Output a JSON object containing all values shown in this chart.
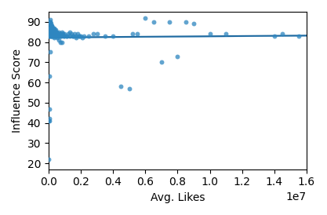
{
  "xlabel": "Avg. Likes",
  "ylabel": "Influence Score",
  "xlim": [
    0,
    16000000.0
  ],
  "ylim": [
    17,
    95
  ],
  "scatter_color": "#2e86c0",
  "line_color": "#1f6aa0",
  "ci_color": "#c5ddf0",
  "scatter_alpha": 0.75,
  "marker_size": 18,
  "seed": 42,
  "x_data": [
    50000,
    30000,
    20000,
    10000,
    40000,
    60000,
    25000,
    15000,
    35000,
    45000,
    55000,
    70000,
    80000,
    90000,
    100000,
    110000,
    120000,
    130000,
    140000,
    150000,
    160000,
    170000,
    180000,
    190000,
    200000,
    210000,
    220000,
    230000,
    240000,
    250000,
    260000,
    270000,
    280000,
    290000,
    300000,
    310000,
    320000,
    330000,
    340000,
    350000,
    360000,
    370000,
    380000,
    390000,
    400000,
    420000,
    440000,
    460000,
    480000,
    500000,
    550000,
    600000,
    650000,
    700000,
    750000,
    800000,
    850000,
    900000,
    950000,
    1000000,
    1100000,
    1200000,
    1300000,
    1400000,
    1500000,
    1600000,
    1700000,
    1800000,
    1900000,
    2000000,
    2200000,
    2500000,
    2800000,
    3000000,
    3500000,
    4000000,
    4500000,
    5000000,
    5200000,
    5500000,
    6000000,
    6500000,
    7000000,
    7500000,
    8000000,
    8500000,
    9000000,
    10000000,
    11000000,
    14000000,
    14500000,
    15500000,
    50000,
    70000,
    90000,
    110000,
    130000,
    150000,
    170000,
    190000,
    210000,
    230000,
    250000,
    280000,
    310000,
    340000,
    370000,
    400000,
    450000,
    500000,
    600000,
    700000,
    800000,
    900000,
    1000000,
    1100000,
    1300000,
    1500000,
    1700000,
    1900000,
    2100000,
    60000,
    80000,
    100000,
    120000,
    140000,
    160000,
    180000,
    200000,
    220000,
    240000,
    270000,
    300000,
    330000,
    360000,
    420000,
    480000,
    550000,
    650000,
    750000,
    850000,
    40000,
    35000,
    25000,
    15000,
    55000,
    75000,
    95000
  ],
  "y_data": [
    84,
    85,
    83,
    86,
    84,
    85,
    84,
    83,
    85,
    84,
    85,
    84,
    83,
    85,
    84,
    85,
    83,
    84,
    85,
    84,
    83,
    85,
    84,
    83,
    85,
    84,
    83,
    85,
    84,
    85,
    84,
    83,
    84,
    85,
    84,
    83,
    85,
    84,
    83,
    84,
    85,
    84,
    83,
    85,
    84,
    83,
    85,
    84,
    83,
    85,
    84,
    83,
    85,
    84,
    83,
    84,
    85,
    84,
    83,
    84,
    83,
    84,
    85,
    84,
    83,
    84,
    83,
    84,
    83,
    83,
    83,
    83,
    84,
    84,
    83,
    83,
    58,
    57,
    84,
    84,
    92,
    90,
    70,
    90,
    73,
    90,
    89,
    84,
    84,
    83,
    84,
    83,
    88,
    87,
    90,
    87,
    88,
    86,
    87,
    86,
    88,
    87,
    86,
    87,
    86,
    87,
    86,
    85,
    86,
    85,
    84,
    84,
    83,
    84,
    83,
    83,
    83,
    83,
    82,
    83,
    82,
    90,
    91,
    89,
    90,
    88,
    89,
    87,
    88,
    87,
    86,
    85,
    84,
    83,
    82,
    84,
    83,
    82,
    81,
    80,
    80,
    47,
    63,
    41,
    22,
    42,
    41,
    75
  ]
}
